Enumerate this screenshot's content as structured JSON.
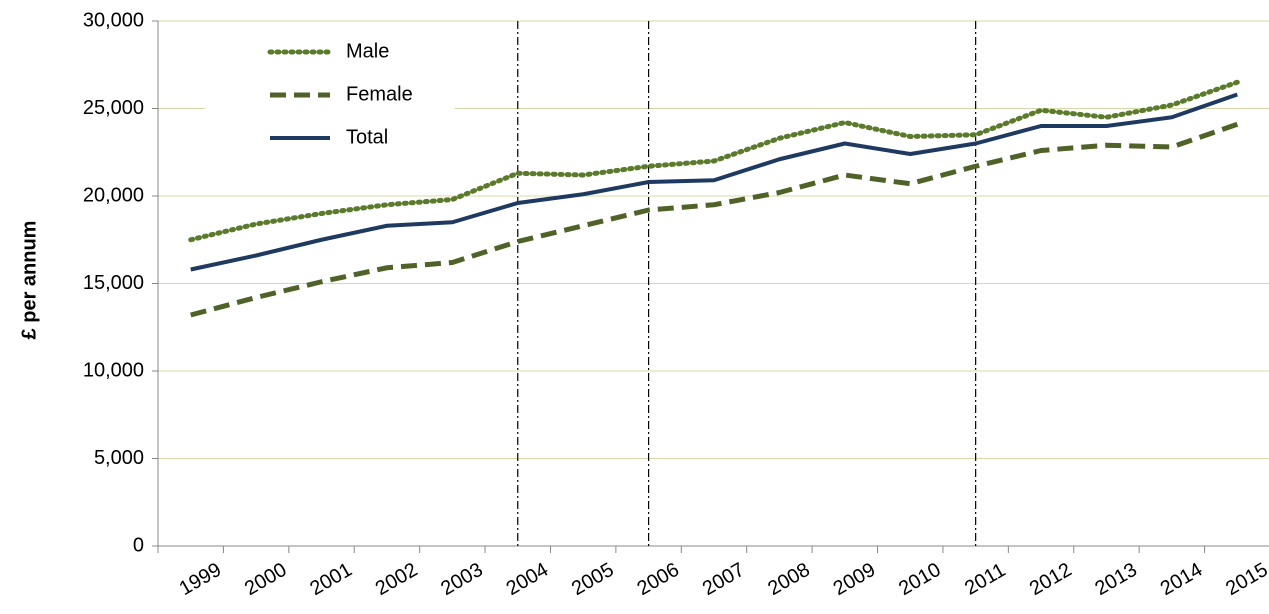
{
  "chart_data": {
    "type": "line",
    "y_label": "£ per annum",
    "categories": [
      "1999",
      "2000",
      "2001",
      "2002",
      "2003",
      "2004",
      "2005",
      "2006",
      "2007",
      "2008",
      "2009",
      "2010",
      "2011",
      "2012",
      "2013",
      "2014",
      "2015"
    ],
    "series": [
      {
        "name": "Male",
        "color": "#5b7a2c",
        "style": "dotted",
        "values": [
          17500,
          18400,
          19000,
          19500,
          19800,
          21300,
          21200,
          21700,
          22000,
          23300,
          24200,
          23400,
          23500,
          24900,
          24500,
          25200,
          26500
        ]
      },
      {
        "name": "Female",
        "color": "#4f6228",
        "style": "dashed",
        "values": [
          13200,
          14200,
          15100,
          15900,
          16200,
          17400,
          18300,
          19200,
          19500,
          20200,
          21200,
          20700,
          21700,
          22600,
          22900,
          22800,
          24100
        ]
      },
      {
        "name": "Total",
        "color": "#1f3a60",
        "style": "solid",
        "values": [
          15800,
          16600,
          17500,
          18300,
          18500,
          19600,
          20100,
          20800,
          20900,
          22100,
          23000,
          22400,
          23000,
          24000,
          24000,
          24500,
          25800
        ]
      }
    ],
    "vertical_lines": [
      "2004",
      "2006",
      "2011"
    ],
    "ylim": [
      0,
      30000
    ],
    "yticks": [
      0,
      {
        "value": 5000,
        "label": "5,000"
      },
      {
        "value": 10000,
        "label": "10,000"
      },
      {
        "value": 15000,
        "label": "15,000"
      },
      {
        "value": 20000,
        "label": "20,000"
      },
      {
        "value": 25000,
        "label": "25,000"
      },
      {
        "value": 30000,
        "label": "30,000"
      }
    ],
    "grid": true,
    "legend": "top-left"
  }
}
